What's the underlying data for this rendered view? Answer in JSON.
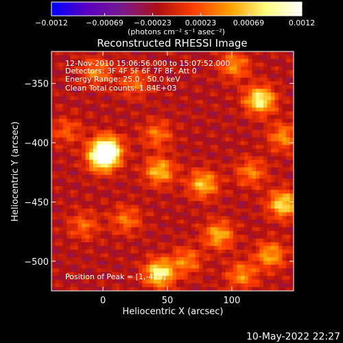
{
  "colorbar": {
    "ticks": [
      "-0.0012",
      "-0.00069",
      "-0.00023",
      "0.00023",
      "0.00069",
      "0.0012"
    ],
    "tick_values": [
      -0.0012,
      -0.00069,
      -0.00023,
      0.00023,
      0.00069,
      0.0012
    ],
    "unit_label": "(photons cm⁻² s⁻¹ asec⁻²)",
    "colors": [
      "#0000ff",
      "#5a00c0",
      "#7a1a8a",
      "#b01010",
      "#ff4000",
      "#ffa000",
      "#ffff80",
      "#ffffff"
    ]
  },
  "chart_data": {
    "type": "heatmap",
    "title": "Reconstructed RHESSI Image",
    "xlabel": "Heliocentric X (arcsec)",
    "ylabel": "Heliocentric Y (arcsec)",
    "xlim": [
      -40,
      148
    ],
    "ylim": [
      -525,
      -323
    ],
    "x_ticks": [
      0,
      50,
      100
    ],
    "y_ticks": [
      -350,
      -400,
      -450,
      -500
    ],
    "x_tick_labels": [
      "0",
      "50",
      "100"
    ],
    "y_tick_labels": [
      "−350",
      "−400",
      "−450",
      "−500"
    ],
    "vlim": [
      -0.0012,
      0.0012
    ],
    "annotations": [
      "12-Nov-2010 15:06:56.000 to 15:07:52.000",
      "Detectors: 3F 4F 5F 6F 7F 8F, Att 0",
      "Energy Range: 25.0 - 50.0 keV",
      "Clean     Total counts: 1.84E+03"
    ],
    "peak_label": "Position of Peak = [1,-413]",
    "hotspots": [
      {
        "x": 0,
        "y": -413,
        "value": 0.0012
      },
      {
        "x": 3,
        "y": -405,
        "value": 0.0011
      },
      {
        "x": 122,
        "y": -364,
        "value": 0.0011
      },
      {
        "x": 44,
        "y": -510,
        "value": 0.0011
      },
      {
        "x": 44,
        "y": -424,
        "value": 0.0008
      },
      {
        "x": 140,
        "y": -452,
        "value": 0.00095
      },
      {
        "x": 78,
        "y": -435,
        "value": 0.0008
      },
      {
        "x": 90,
        "y": -478,
        "value": 0.00075
      },
      {
        "x": -5,
        "y": -340,
        "value": 0.00055
      },
      {
        "x": 130,
        "y": -495,
        "value": 0.0007
      },
      {
        "x": 108,
        "y": -512,
        "value": 0.0006
      },
      {
        "x": 102,
        "y": -335,
        "value": 0.0006
      },
      {
        "x": 42,
        "y": -393,
        "value": 0.0005
      },
      {
        "x": 115,
        "y": -425,
        "value": 0.00055
      },
      {
        "x": -15,
        "y": -470,
        "value": 0.00045
      },
      {
        "x": 18,
        "y": -465,
        "value": 0.0005
      },
      {
        "x": 65,
        "y": -500,
        "value": 0.00055
      },
      {
        "x": 140,
        "y": -395,
        "value": 0.0006
      },
      {
        "x": -28,
        "y": -390,
        "value": 0.0004
      },
      {
        "x": 25,
        "y": -350,
        "value": 0.00045
      }
    ]
  },
  "footer": {
    "timestamp": "10-May-2022 22:27"
  }
}
